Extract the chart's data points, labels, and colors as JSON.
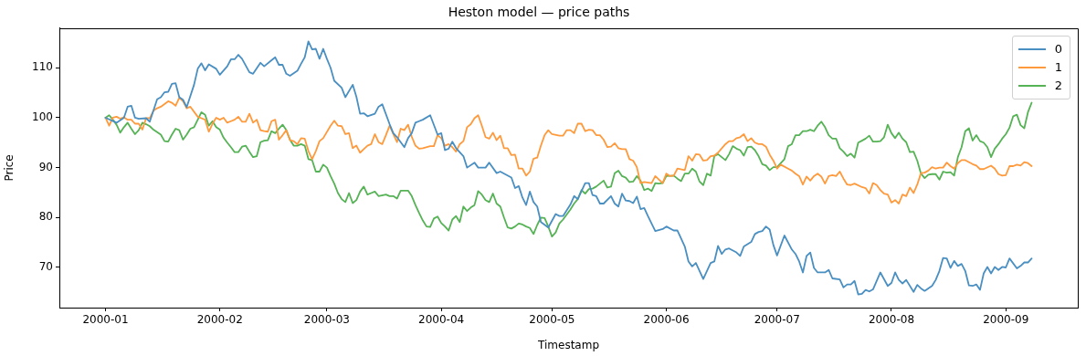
{
  "chart_data": {
    "type": "line",
    "title": "Heston model — price paths",
    "xlabel": "Timestamp",
    "ylabel": "Price",
    "xlim": [
      "1999-12-19T12:00",
      "2000-09-20T12:00"
    ],
    "xticks": [
      "2000-01",
      "2000-02",
      "2000-03",
      "2000-04",
      "2000-05",
      "2000-06",
      "2000-07",
      "2000-08",
      "2000-09"
    ],
    "ylim": [
      61.95,
      117.95
    ],
    "yticks": [
      70,
      80,
      90,
      100,
      110
    ],
    "legend": "top right",
    "series": [
      {
        "name": "0",
        "color": "#4a8fc1",
        "x": [
          "2000-01-01",
          "2000-01-04",
          "2000-01-06",
          "2000-01-07",
          "2000-01-08",
          "2000-01-09",
          "2000-01-10",
          "2000-01-12",
          "2000-01-13",
          "2000-01-15",
          "2000-01-16",
          "2000-01-17",
          "2000-01-18",
          "2000-01-19",
          "2000-01-20",
          "2000-01-21",
          "2000-01-22",
          "2000-01-23",
          "2000-01-25",
          "2000-01-26",
          "2000-01-27",
          "2000-01-28",
          "2000-01-29",
          "2000-01-31",
          "2000-02-01",
          "2000-02-03",
          "2000-02-04",
          "2000-02-05",
          "2000-02-06",
          "2000-02-07",
          "2000-02-09",
          "2000-02-10",
          "2000-02-12",
          "2000-02-13",
          "2000-02-15",
          "2000-02-16",
          "2000-02-17",
          "2000-02-18",
          "2000-02-19",
          "2000-02-20",
          "2000-02-22",
          "2000-02-23",
          "2000-02-24",
          "2000-02-25",
          "2000-02-26",
          "2000-02-27",
          "2000-02-28",
          "2000-02-29",
          "2000-03-01",
          "2000-03-02",
          "2000-03-03",
          "2000-03-05",
          "2000-03-06",
          "2000-03-08",
          "2000-03-09",
          "2000-03-10",
          "2000-03-11",
          "2000-03-12",
          "2000-03-14",
          "2000-03-15",
          "2000-03-16",
          "2000-03-18",
          "2000-03-19",
          "2000-03-20",
          "2000-03-22",
          "2000-03-23",
          "2000-03-24",
          "2000-03-25",
          "2000-03-26",
          "2000-03-27",
          "2000-03-29",
          "2000-03-31",
          "2000-04-01",
          "2000-04-02",
          "2000-04-03",
          "2000-04-04",
          "2000-04-05",
          "2000-04-07",
          "2000-04-08",
          "2000-04-10",
          "2000-04-11",
          "2000-04-13",
          "2000-04-14",
          "2000-04-16",
          "2000-04-17",
          "2000-04-20",
          "2000-04-21",
          "2000-04-22",
          "2000-04-23",
          "2000-04-24",
          "2000-04-25",
          "2000-04-26",
          "2000-04-27",
          "2000-04-28",
          "2000-04-30",
          "2000-05-02",
          "2000-05-03",
          "2000-05-04",
          "2000-05-06",
          "2000-05-07",
          "2000-05-08",
          "2000-05-10",
          "2000-05-11",
          "2000-05-12",
          "2000-05-13",
          "2000-05-14",
          "2000-05-15",
          "2000-05-17",
          "2000-05-18",
          "2000-05-19",
          "2000-05-20",
          "2000-05-21",
          "2000-05-22",
          "2000-05-23",
          "2000-05-24",
          "2000-05-25",
          "2000-05-26",
          "2000-05-27",
          "2000-05-29",
          "2000-05-31",
          "2000-06-01",
          "2000-06-03",
          "2000-06-04",
          "2000-06-06",
          "2000-06-07",
          "2000-06-08",
          "2000-06-09",
          "2000-06-11",
          "2000-06-13",
          "2000-06-14",
          "2000-06-15",
          "2000-06-16",
          "2000-06-17",
          "2000-06-18",
          "2000-06-20",
          "2000-06-21",
          "2000-06-22",
          "2000-06-24",
          "2000-06-25",
          "2000-06-26",
          "2000-06-27",
          "2000-06-28",
          "2000-06-29",
          "2000-06-30",
          "2000-07-01",
          "2000-07-03",
          "2000-07-05",
          "2000-07-06",
          "2000-07-07",
          "2000-07-08",
          "2000-07-09",
          "2000-07-10",
          "2000-07-11",
          "2000-07-12",
          "2000-07-14",
          "2000-07-15",
          "2000-07-16",
          "2000-07-18",
          "2000-07-19",
          "2000-07-20",
          "2000-07-21",
          "2000-07-22",
          "2000-07-23",
          "2000-07-24",
          "2000-07-25",
          "2000-07-26",
          "2000-07-27",
          "2000-07-29",
          "2000-07-31",
          "2000-08-01",
          "2000-08-02",
          "2000-08-03",
          "2000-08-04",
          "2000-08-05",
          "2000-08-07",
          "2000-08-08",
          "2000-08-09",
          "2000-08-10",
          "2000-08-12",
          "2000-08-13",
          "2000-08-14",
          "2000-08-15",
          "2000-08-16",
          "2000-08-17",
          "2000-08-18",
          "2000-08-19",
          "2000-08-20",
          "2000-08-21",
          "2000-08-22",
          "2000-08-23",
          "2000-08-24",
          "2000-08-25",
          "2000-08-26",
          "2000-08-27",
          "2000-08-28",
          "2000-08-29",
          "2000-08-30",
          "2000-08-31",
          "2000-09-01",
          "2000-09-02",
          "2000-09-04",
          "2000-09-05",
          "2000-09-06",
          "2000-09-07",
          "2000-09-08"
        ],
        "values": [
          100,
          99.0,
          100.0,
          102.2,
          102.4,
          100.0,
          99.8,
          99.9,
          99.2,
          103.7,
          104.1,
          105.1,
          105.2,
          106.8,
          106.9,
          104.1,
          103.6,
          102.1,
          106.6,
          109.8,
          110.9,
          109.5,
          110.7,
          109.8,
          108.6,
          110.3,
          111.7,
          111.7,
          112.6,
          111.8,
          109.1,
          108.8,
          111.0,
          110.3,
          111.5,
          112.1,
          110.6,
          110.6,
          108.8,
          108.4,
          109.4,
          110.8,
          112.1,
          115.3,
          113.7,
          113.8,
          111.8,
          113.8,
          111.8,
          110.0,
          107.4,
          106.0,
          104.1,
          106.6,
          104.2,
          100.8,
          100.9,
          100.3,
          100.8,
          102.2,
          102.7,
          98.7,
          96.9,
          96.1,
          94.1,
          95.9,
          96.9,
          99.0,
          99.3,
          99.6,
          100.5,
          96.6,
          96.9,
          93.5,
          93.8,
          95.2,
          93.9,
          92.3,
          90.0,
          91.0,
          90.0,
          90.0,
          91.0,
          88.9,
          89.2,
          88.0,
          85.9,
          86.3,
          84.0,
          82.5,
          85.2,
          83.1,
          82.2,
          79.1,
          78.0,
          80.7,
          80.3,
          80.3,
          82.6,
          84.3,
          83.7,
          86.9,
          86.9,
          84.5,
          84.3,
          82.8,
          82.8,
          84.3,
          82.8,
          82.2,
          84.8,
          83.4,
          83.3,
          82.9,
          84.2,
          81.7,
          81.9,
          80.3,
          77.3,
          77.7,
          78.2,
          77.4,
          77.4,
          74.2,
          71.2,
          70.2,
          70.9,
          67.7,
          70.9,
          71.2,
          74.3,
          72.7,
          73.6,
          73.8,
          73.0,
          72.3,
          74.2,
          75.1,
          76.7,
          77.1,
          77.3,
          78.2,
          77.6,
          74.5,
          72.4,
          76.4,
          73.6,
          72.7,
          71.2,
          69.0,
          72.3,
          73.0,
          69.9,
          69.0,
          69.0,
          69.5,
          67.8,
          67.6,
          66.0,
          66.6,
          66.6,
          67.3,
          64.6,
          64.7,
          65.5,
          65.2,
          65.6,
          69.0,
          66.3,
          66.9,
          69.0,
          67.5,
          66.8,
          67.5,
          65.1,
          66.5,
          65.8,
          65.3,
          66.3,
          67.5,
          69.3,
          71.9,
          71.8,
          69.9,
          71.3,
          70.3,
          70.7,
          69.3,
          66.4,
          66.3,
          66.6,
          65.5,
          68.8,
          70.1,
          68.8,
          70.1,
          69.5,
          70.1,
          70.0,
          71.8,
          69.8,
          70.3,
          71.0,
          71.0,
          71.8
        ]
      },
      {
        "name": "1",
        "color": "#ff9a3c",
        "x": [
          "2000-01-01",
          "2000-01-02",
          "2000-01-03",
          "2000-01-04",
          "2000-01-05",
          "2000-01-06",
          "2000-01-07",
          "2000-01-08",
          "2000-01-09",
          "2000-01-10",
          "2000-01-11",
          "2000-01-12",
          "2000-01-13",
          "2000-01-14",
          "2000-01-15",
          "2000-01-16",
          "2000-01-18",
          "2000-01-19",
          "2000-01-20",
          "2000-01-21",
          "2000-01-22",
          "2000-01-23",
          "2000-01-24",
          "2000-01-26",
          "2000-01-27",
          "2000-01-28",
          "2000-01-29",
          "2000-01-30",
          "2000-01-31",
          "2000-02-01",
          "2000-02-02",
          "2000-02-03",
          "2000-02-04",
          "2000-02-05",
          "2000-02-06",
          "2000-02-07",
          "2000-02-08",
          "2000-02-09",
          "2000-02-10",
          "2000-02-11",
          "2000-02-12",
          "2000-02-13",
          "2000-02-14",
          "2000-02-15",
          "2000-02-16",
          "2000-02-17",
          "2000-02-18",
          "2000-02-19",
          "2000-02-20",
          "2000-02-21",
          "2000-02-22",
          "2000-02-23",
          "2000-02-24",
          "2000-02-25",
          "2000-02-26",
          "2000-02-27",
          "2000-02-28",
          "2000-02-29",
          "2000-03-02",
          "2000-03-03",
          "2000-03-04",
          "2000-03-05",
          "2000-03-06",
          "2000-03-07",
          "2000-03-08",
          "2000-03-09",
          "2000-03-10",
          "2000-03-11",
          "2000-03-12",
          "2000-03-13",
          "2000-03-14",
          "2000-03-15",
          "2000-03-16",
          "2000-03-17",
          "2000-03-18",
          "2000-03-19",
          "2000-03-20",
          "2000-03-21",
          "2000-03-22",
          "2000-03-23",
          "2000-03-24",
          "2000-03-25",
          "2000-03-26",
          "2000-03-27",
          "2000-03-29",
          "2000-03-30",
          "2000-03-31",
          "2000-04-01",
          "2000-04-02",
          "2000-04-03",
          "2000-04-04",
          "2000-04-05",
          "2000-04-06",
          "2000-04-07",
          "2000-04-08",
          "2000-04-09",
          "2000-04-10",
          "2000-04-11",
          "2000-04-12",
          "2000-04-13",
          "2000-04-14",
          "2000-04-15",
          "2000-04-16",
          "2000-04-17",
          "2000-04-18",
          "2000-04-19",
          "2000-04-20",
          "2000-04-21",
          "2000-04-22",
          "2000-04-23",
          "2000-04-24",
          "2000-04-25",
          "2000-04-26",
          "2000-04-27",
          "2000-04-28",
          "2000-04-29",
          "2000-04-30",
          "2000-05-01",
          "2000-05-03",
          "2000-05-04",
          "2000-05-05",
          "2000-05-06",
          "2000-05-07",
          "2000-05-08",
          "2000-05-09",
          "2000-05-10",
          "2000-05-11",
          "2000-05-12",
          "2000-05-13",
          "2000-05-14",
          "2000-05-15",
          "2000-05-16",
          "2000-05-17",
          "2000-05-18",
          "2000-05-19",
          "2000-05-20",
          "2000-05-21",
          "2000-05-22",
          "2000-05-23",
          "2000-05-24",
          "2000-05-25",
          "2000-05-26",
          "2000-05-28",
          "2000-05-29",
          "2000-05-31",
          "2000-06-01",
          "2000-06-02",
          "2000-06-03",
          "2000-06-04",
          "2000-06-06",
          "2000-06-07",
          "2000-06-08",
          "2000-06-09",
          "2000-06-10",
          "2000-06-11",
          "2000-06-12",
          "2000-06-13",
          "2000-06-14",
          "2000-06-15",
          "2000-06-17",
          "2000-06-18",
          "2000-06-19",
          "2000-06-20",
          "2000-06-21",
          "2000-06-22",
          "2000-06-23",
          "2000-06-24",
          "2000-06-25",
          "2000-06-26",
          "2000-06-27",
          "2000-06-28",
          "2000-06-29",
          "2000-06-30",
          "2000-07-01",
          "2000-07-02",
          "2000-07-04",
          "2000-07-05",
          "2000-07-06",
          "2000-07-07",
          "2000-07-08",
          "2000-07-09",
          "2000-07-10",
          "2000-07-11",
          "2000-07-12",
          "2000-07-13",
          "2000-07-14",
          "2000-07-15",
          "2000-07-16",
          "2000-07-17",
          "2000-07-18",
          "2000-07-19",
          "2000-07-20",
          "2000-07-21",
          "2000-07-22",
          "2000-07-24",
          "2000-07-25",
          "2000-07-26",
          "2000-07-27",
          "2000-07-28",
          "2000-07-29",
          "2000-07-30",
          "2000-07-31",
          "2000-08-01",
          "2000-08-02",
          "2000-08-03",
          "2000-08-04",
          "2000-08-05",
          "2000-08-06",
          "2000-08-07",
          "2000-08-08",
          "2000-08-09",
          "2000-08-10",
          "2000-08-11",
          "2000-08-12",
          "2000-08-13",
          "2000-08-14",
          "2000-08-15",
          "2000-08-16",
          "2000-08-17",
          "2000-08-18",
          "2000-08-19",
          "2000-08-20",
          "2000-08-21",
          "2000-08-23",
          "2000-08-24",
          "2000-08-25",
          "2000-08-26",
          "2000-08-28",
          "2000-08-29",
          "2000-08-30",
          "2000-08-31",
          "2000-09-01",
          "2000-09-02",
          "2000-09-03",
          "2000-09-04",
          "2000-09-05",
          "2000-09-06",
          "2000-09-07",
          "2000-09-08"
        ],
        "values": [
          100,
          98.4,
          100.0,
          100.2,
          99.8,
          100.1,
          99.6,
          99.6,
          98.8,
          98.8,
          97.6,
          99.9,
          99.9,
          101.4,
          101.9,
          102.2,
          103.3,
          103.0,
          102.4,
          104.0,
          103.3,
          101.9,
          102.2,
          100.2,
          99.9,
          99.6,
          97.2,
          98.8,
          100.0,
          99.6,
          100.0,
          99.0,
          99.3,
          99.6,
          100.2,
          99.2,
          99.2,
          100.8,
          99.0,
          99.6,
          97.5,
          97.3,
          97.2,
          99.3,
          99.6,
          95.6,
          96.5,
          97.5,
          95.5,
          95.3,
          94.7,
          95.9,
          95.8,
          93.3,
          91.7,
          93.3,
          95.3,
          95.9,
          98.4,
          99.4,
          98.4,
          98.3,
          96.7,
          96.9,
          93.9,
          94.4,
          93.0,
          93.7,
          94.4,
          94.7,
          96.7,
          95.1,
          94.7,
          96.5,
          98.4,
          96.7,
          95.1,
          97.8,
          97.5,
          98.6,
          96.2,
          94.4,
          93.8,
          93.9,
          94.3,
          94.3,
          96.5,
          95.9,
          94.4,
          94.7,
          94.1,
          93.2,
          94.7,
          95.3,
          98.1,
          98.7,
          99.9,
          100.5,
          98.4,
          96.1,
          95.8,
          97.0,
          95.5,
          96.4,
          93.9,
          93.9,
          92.5,
          92.6,
          89.8,
          89.8,
          88.4,
          89.2,
          91.8,
          92.0,
          94.4,
          96.5,
          97.5,
          96.7,
          96.4,
          96.4,
          97.5,
          97.5,
          96.9,
          98.8,
          98.8,
          97.3,
          97.6,
          97.5,
          96.5,
          96.5,
          95.6,
          94.1,
          94.2,
          94.9,
          93.9,
          93.7,
          93.7,
          91.7,
          91.4,
          90.1,
          86.9,
          87.1,
          86.9,
          88.3,
          86.9,
          88.8,
          88.3,
          88.4,
          89.8,
          89.5,
          92.3,
          91.4,
          92.7,
          92.6,
          91.4,
          91.5,
          92.3,
          92.4,
          93.0,
          94.7,
          95.3,
          95.3,
          95.9,
          96.1,
          96.7,
          95.3,
          95.9,
          95.0,
          94.7,
          94.7,
          94.2,
          92.6,
          91.4,
          89.8,
          90.6,
          89.8,
          89.4,
          88.8,
          88.3,
          86.6,
          88.2,
          87.4,
          88.3,
          88.8,
          88.2,
          86.8,
          88.3,
          88.5,
          88.3,
          89.2,
          87.8,
          86.6,
          86.5,
          86.8,
          86.1,
          85.9,
          84.8,
          86.9,
          86.5,
          85.5,
          84.8,
          84.6,
          83.0,
          83.5,
          82.8,
          84.6,
          84.3,
          86.0,
          84.9,
          86.6,
          88.9,
          89.0,
          89.4,
          90.1,
          89.8,
          90.0,
          90.0,
          91.0,
          90.3,
          89.8,
          90.9,
          91.5,
          91.5,
          90.7,
          90.4,
          89.7,
          89.7,
          90.4,
          89.8,
          88.7,
          88.4,
          88.5,
          90.3,
          90.3,
          90.6,
          90.4,
          91.1,
          90.9,
          90.3
        ]
      },
      {
        "name": "2",
        "color": "#55b255",
        "x": [
          "2000-01-01",
          "2000-01-02",
          "2000-01-03",
          "2000-01-04",
          "2000-01-05",
          "2000-01-06",
          "2000-01-07",
          "2000-01-08",
          "2000-01-09",
          "2000-01-10",
          "2000-01-11",
          "2000-01-12",
          "2000-01-13",
          "2000-01-14",
          "2000-01-16",
          "2000-01-17",
          "2000-01-18",
          "2000-01-19",
          "2000-01-20",
          "2000-01-21",
          "2000-01-22",
          "2000-01-23",
          "2000-01-24",
          "2000-01-25",
          "2000-01-26",
          "2000-01-27",
          "2000-01-28",
          "2000-01-29",
          "2000-01-30",
          "2000-01-31",
          "2000-02-01",
          "2000-02-02",
          "2000-02-03",
          "2000-02-04",
          "2000-02-05",
          "2000-02-06",
          "2000-02-07",
          "2000-02-08",
          "2000-02-09",
          "2000-02-10",
          "2000-02-11",
          "2000-02-12",
          "2000-02-13",
          "2000-02-14",
          "2000-02-15",
          "2000-02-16",
          "2000-02-17",
          "2000-02-18",
          "2000-02-19",
          "2000-02-20",
          "2000-02-21",
          "2000-02-22",
          "2000-02-23",
          "2000-02-24",
          "2000-02-25",
          "2000-02-26",
          "2000-02-27",
          "2000-02-28",
          "2000-02-29",
          "2000-03-01",
          "2000-03-02",
          "2000-03-03",
          "2000-03-04",
          "2000-03-05",
          "2000-03-06",
          "2000-03-07",
          "2000-03-08",
          "2000-03-09",
          "2000-03-10",
          "2000-03-11",
          "2000-03-12",
          "2000-03-13",
          "2000-03-14",
          "2000-03-15",
          "2000-03-17",
          "2000-03-18",
          "2000-03-19",
          "2000-03-20",
          "2000-03-21",
          "2000-03-23",
          "2000-03-24",
          "2000-03-25",
          "2000-03-26",
          "2000-03-27",
          "2000-03-28",
          "2000-03-29",
          "2000-03-30",
          "2000-03-31",
          "2000-04-01",
          "2000-04-02",
          "2000-04-03",
          "2000-04-04",
          "2000-04-05",
          "2000-04-06",
          "2000-04-07",
          "2000-04-08",
          "2000-04-09",
          "2000-04-10",
          "2000-04-11",
          "2000-04-12",
          "2000-04-13",
          "2000-04-14",
          "2000-04-15",
          "2000-04-16",
          "2000-04-17",
          "2000-04-18",
          "2000-04-19",
          "2000-04-20",
          "2000-04-21",
          "2000-04-22",
          "2000-04-23",
          "2000-04-24",
          "2000-04-25",
          "2000-04-26",
          "2000-04-27",
          "2000-04-28",
          "2000-04-29",
          "2000-04-30",
          "2000-05-01",
          "2000-05-02",
          "2000-05-03",
          "2000-05-04",
          "2000-05-05",
          "2000-05-06",
          "2000-05-07",
          "2000-05-08",
          "2000-05-09",
          "2000-05-10",
          "2000-05-11",
          "2000-05-12",
          "2000-05-13",
          "2000-05-14",
          "2000-05-15",
          "2000-05-16",
          "2000-05-17",
          "2000-05-18",
          "2000-05-19",
          "2000-05-20",
          "2000-05-21",
          "2000-05-22",
          "2000-05-23",
          "2000-05-24",
          "2000-05-25",
          "2000-05-26",
          "2000-05-27",
          "2000-05-28",
          "2000-05-29",
          "2000-05-30",
          "2000-05-31",
          "2000-06-01",
          "2000-06-03",
          "2000-06-04",
          "2000-06-05",
          "2000-06-06",
          "2000-06-07",
          "2000-06-08",
          "2000-06-09",
          "2000-06-10",
          "2000-06-11",
          "2000-06-12",
          "2000-06-13",
          "2000-06-14",
          "2000-06-15",
          "2000-06-16",
          "2000-06-17",
          "2000-06-18",
          "2000-06-19",
          "2000-06-20",
          "2000-06-21",
          "2000-06-22",
          "2000-06-23",
          "2000-06-24",
          "2000-06-25",
          "2000-06-26",
          "2000-06-27",
          "2000-06-28",
          "2000-06-29",
          "2000-06-30",
          "2000-07-01",
          "2000-07-03",
          "2000-07-04",
          "2000-07-05",
          "2000-07-06",
          "2000-07-07",
          "2000-07-08",
          "2000-07-09",
          "2000-07-10",
          "2000-07-11",
          "2000-07-12",
          "2000-07-13",
          "2000-07-14",
          "2000-07-15",
          "2000-07-16",
          "2000-07-17",
          "2000-07-18",
          "2000-07-19",
          "2000-07-20",
          "2000-07-21",
          "2000-07-22",
          "2000-07-23",
          "2000-07-24",
          "2000-07-25",
          "2000-07-26",
          "2000-07-27",
          "2000-07-28",
          "2000-07-29",
          "2000-07-30",
          "2000-07-31",
          "2000-08-01",
          "2000-08-02",
          "2000-08-03",
          "2000-08-04",
          "2000-08-05",
          "2000-08-06",
          "2000-08-07",
          "2000-08-08",
          "2000-08-09",
          "2000-08-10",
          "2000-08-11",
          "2000-08-12",
          "2000-08-13",
          "2000-08-14",
          "2000-08-15",
          "2000-08-16",
          "2000-08-17",
          "2000-08-18",
          "2000-08-19",
          "2000-08-20",
          "2000-08-21",
          "2000-08-22",
          "2000-08-23",
          "2000-08-24",
          "2000-08-25",
          "2000-08-26",
          "2000-08-27",
          "2000-08-28",
          "2000-08-29",
          "2000-08-30",
          "2000-08-31",
          "2000-09-01",
          "2000-09-02",
          "2000-09-03",
          "2000-09-04",
          "2000-09-05",
          "2000-09-06",
          "2000-09-07",
          "2000-09-08"
        ],
        "values": [
          100,
          100.5,
          99.6,
          98.6,
          97.0,
          98.1,
          99.0,
          97.8,
          96.7,
          97.5,
          99.0,
          98.7,
          98.3,
          97.6,
          96.6,
          95.3,
          95.2,
          96.6,
          97.8,
          97.5,
          95.6,
          96.6,
          97.8,
          98.1,
          99.6,
          101.1,
          100.6,
          98.4,
          99.3,
          98.1,
          97.6,
          96.0,
          95.0,
          94.1,
          93.1,
          93.1,
          94.2,
          94.4,
          93.2,
          92.1,
          92.3,
          95.1,
          95.4,
          95.5,
          97.3,
          96.9,
          97.8,
          98.6,
          97.5,
          95.6,
          94.4,
          94.4,
          94.7,
          94.4,
          91.7,
          91.5,
          89.2,
          89.2,
          90.6,
          90.0,
          88.3,
          86.8,
          84.9,
          83.7,
          83.1,
          84.9,
          82.9,
          83.5,
          85.2,
          86.2,
          84.6,
          84.9,
          85.2,
          84.3,
          84.6,
          84.3,
          84.3,
          83.8,
          85.4,
          85.4,
          84.3,
          82.5,
          80.9,
          79.4,
          78.2,
          78.1,
          79.8,
          80.2,
          78.9,
          78.2,
          77.4,
          79.6,
          80.3,
          79.1,
          82.2,
          81.3,
          82.0,
          82.5,
          85.3,
          84.6,
          83.5,
          83.1,
          84.8,
          82.8,
          82.2,
          80.0,
          78.0,
          77.8,
          78.2,
          78.8,
          78.6,
          78.2,
          77.9,
          76.7,
          78.5,
          80.0,
          79.9,
          78.2,
          76.2,
          77.0,
          78.8,
          79.6,
          80.6,
          81.6,
          82.8,
          83.7,
          85.5,
          84.8,
          85.7,
          85.8,
          86.2,
          86.8,
          87.4,
          86.0,
          86.2,
          88.9,
          89.4,
          88.3,
          88.0,
          87.1,
          87.2,
          88.3,
          87.4,
          85.5,
          85.8,
          85.3,
          86.9,
          86.8,
          86.9,
          88.3,
          88.4,
          87.8,
          87.3,
          88.8,
          88.8,
          89.8,
          89.2,
          87.2,
          86.5,
          88.8,
          88.4,
          92.3,
          92.7,
          92.1,
          91.5,
          92.7,
          94.3,
          93.8,
          93.5,
          92.4,
          94.1,
          94.2,
          93.5,
          92.3,
          90.7,
          90.4,
          89.5,
          90.1,
          90.1,
          91.7,
          94.3,
          94.7,
          96.5,
          96.5,
          97.3,
          97.3,
          97.6,
          97.3,
          98.4,
          99.2,
          98.1,
          96.5,
          95.8,
          95.8,
          93.9,
          93.2,
          92.3,
          92.8,
          92.0,
          95.0,
          95.4,
          95.8,
          96.4,
          95.2,
          95.2,
          95.3,
          96.1,
          98.6,
          96.9,
          95.9,
          97.0,
          95.8,
          95.1,
          93.1,
          93.2,
          91.4,
          88.8,
          87.9,
          88.6,
          88.7,
          88.7,
          87.6,
          89.2,
          89.0,
          89.1,
          88.4,
          92.1,
          94.1,
          97.3,
          97.9,
          95.4,
          96.5,
          95.3,
          95.0,
          94.1,
          92.1,
          93.8,
          94.7,
          95.8,
          96.7,
          98.0,
          100.3,
          100.6,
          98.5,
          97.9,
          101.1,
          103.0
        ]
      }
    ]
  }
}
